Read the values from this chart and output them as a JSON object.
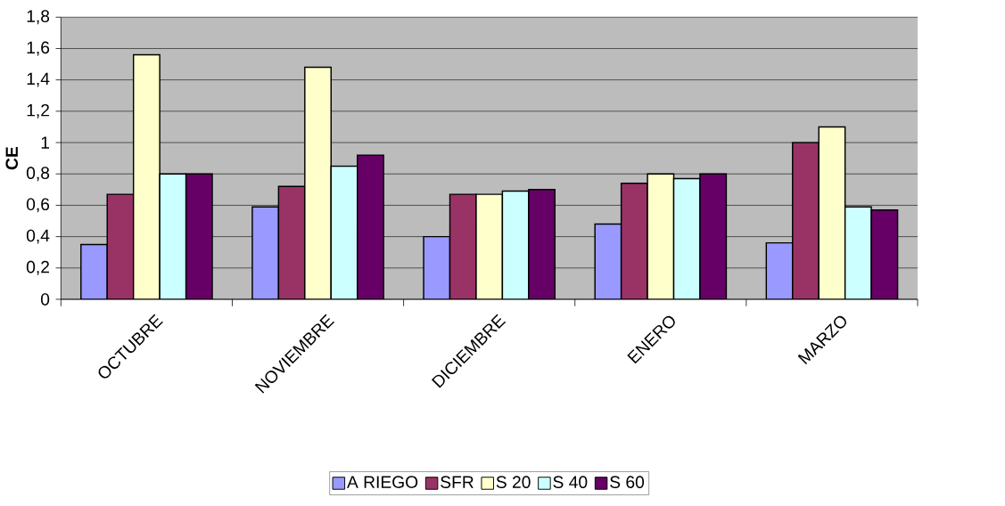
{
  "chart_data": {
    "type": "bar",
    "ylabel": "CE",
    "categories": [
      "OCTUBRE",
      "NOVIEMBRE",
      "DICIEMBRE",
      "ENERO",
      "MARZO"
    ],
    "series": [
      {
        "name": "A RIEGO",
        "color": "#9999ff",
        "values": [
          0.35,
          0.59,
          0.4,
          0.48,
          0.36
        ]
      },
      {
        "name": "SFR",
        "color": "#993366",
        "values": [
          0.67,
          0.72,
          0.67,
          0.74,
          1.0
        ]
      },
      {
        "name": "S 20",
        "color": "#ffffcc",
        "values": [
          1.56,
          1.48,
          0.67,
          0.8,
          1.1
        ]
      },
      {
        "name": "S 40",
        "color": "#ccffff",
        "values": [
          0.8,
          0.85,
          0.69,
          0.77,
          0.59
        ]
      },
      {
        "name": "S 60",
        "color": "#660066",
        "values": [
          0.8,
          0.92,
          0.7,
          0.8,
          0.57
        ]
      }
    ],
    "ylim": [
      0,
      1.8
    ],
    "yticks": [
      0,
      {
        "value": 0.2,
        "label": "0,2"
      },
      {
        "value": 0.4,
        "label": "0,4"
      },
      {
        "value": 0.6,
        "label": "0,6"
      },
      {
        "value": 0.8,
        "label": "0,8"
      },
      1,
      {
        "value": 1.2,
        "label": "1,2"
      },
      {
        "value": 1.4,
        "label": "1,4"
      },
      {
        "value": 1.6,
        "label": "1,6"
      },
      {
        "value": 1.8,
        "label": "1,8"
      }
    ],
    "grid": "y",
    "legend": "bottom"
  }
}
